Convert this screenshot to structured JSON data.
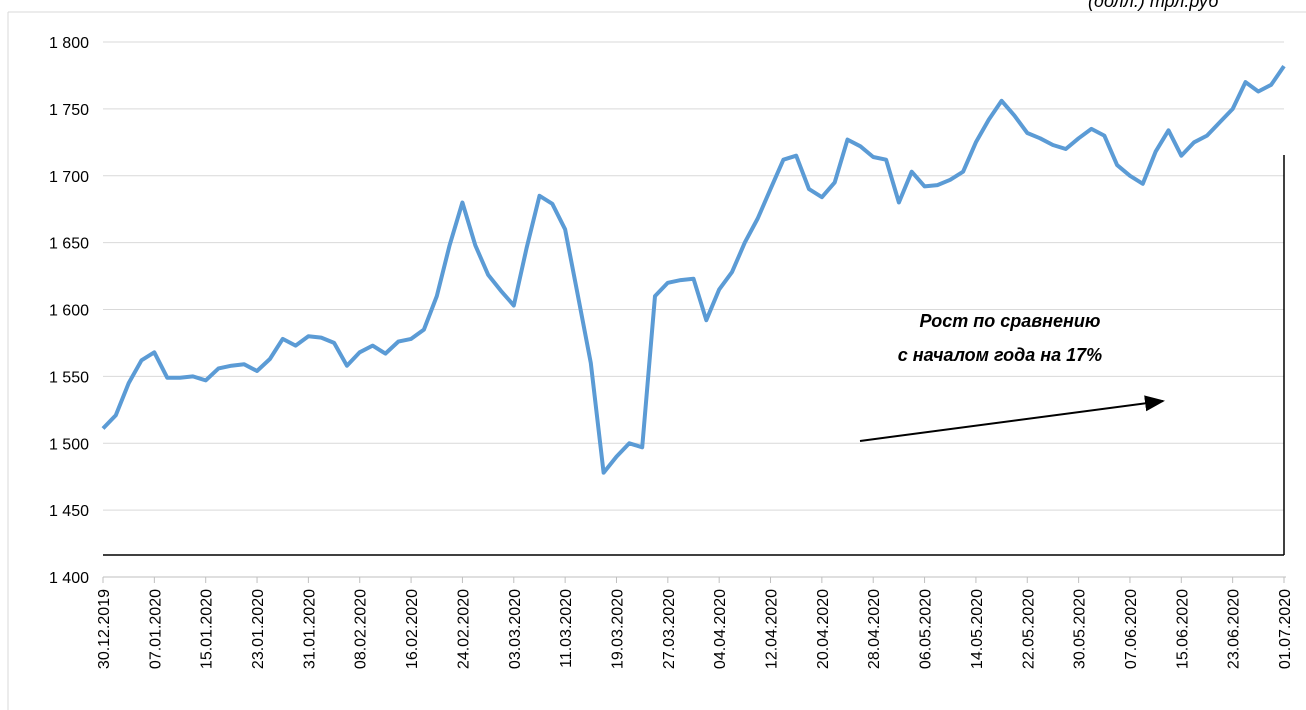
{
  "chart_data": {
    "type": "line",
    "unit_note": "(долл.) трл.руб",
    "annotation": [
      "Рост по сравнению",
      "с началом года на 17%"
    ],
    "categories": [
      "30.12.2019",
      null,
      null,
      null,
      "07.01.2020",
      null,
      null,
      null,
      "15.01.2020",
      null,
      null,
      null,
      "23.01.2020",
      null,
      null,
      null,
      "31.01.2020",
      null,
      null,
      null,
      "08.02.2020",
      null,
      null,
      null,
      "16.02.2020",
      null,
      null,
      null,
      "24.02.2020",
      null,
      null,
      null,
      "03.03.2020",
      null,
      null,
      null,
      "11.03.2020",
      null,
      null,
      null,
      "19.03.2020",
      null,
      null,
      null,
      "27.03.2020",
      null,
      null,
      null,
      "04.04.2020",
      null,
      null,
      null,
      "12.04.2020",
      null,
      null,
      null,
      "20.04.2020",
      null,
      null,
      null,
      "28.04.2020",
      null,
      null,
      null,
      "06.05.2020",
      null,
      null,
      null,
      "14.05.2020",
      null,
      null,
      null,
      "22.05.2020",
      null,
      null,
      null,
      "30.05.2020",
      null,
      null,
      null,
      "07.06.2020",
      null,
      null,
      null,
      "15.06.2020",
      null,
      null,
      null,
      "23.06.2020",
      null,
      null,
      null,
      "01.07.2020"
    ],
    "series": [
      {
        "color": "#5b9bd5",
        "values": [
          1511,
          1521,
          1545,
          1562,
          1568,
          1549,
          1549,
          1550,
          1547,
          1556,
          1558,
          1559,
          1554,
          1563,
          1578,
          1573,
          1580,
          1579,
          1575,
          1558,
          1568,
          1573,
          1567,
          1576,
          1578,
          1585,
          1610,
          1648,
          1680,
          1648,
          1626,
          1614,
          1603,
          1646,
          1685,
          1679,
          1660,
          1610,
          1560,
          1478,
          1490,
          1500,
          1497,
          1610,
          1620,
          1622,
          1623,
          1592,
          1615,
          1628,
          1650,
          1668,
          1690,
          1712,
          1715,
          1690,
          1684,
          1695,
          1727,
          1722,
          1714,
          1712,
          1680,
          1703,
          1692,
          1693,
          1697,
          1703,
          1725,
          1742,
          1756,
          1745,
          1732,
          1728,
          1723,
          1720,
          1728,
          1735,
          1730,
          1708,
          1700,
          1694,
          1718,
          1734,
          1715,
          1725,
          1730,
          1740,
          1750,
          1770,
          1763,
          1768,
          1782
        ]
      }
    ],
    "ylim": [
      1400,
      1800
    ],
    "yticks": [
      {
        "value": 1400,
        "label": "1 400"
      },
      {
        "value": 1450,
        "label": "1 450"
      },
      {
        "value": 1500,
        "label": "1 500"
      },
      {
        "value": 1550,
        "label": "1 550"
      },
      {
        "value": 1600,
        "label": "1 600"
      },
      {
        "value": 1650,
        "label": "1 650"
      },
      {
        "value": 1700,
        "label": "1 700"
      },
      {
        "value": 1750,
        "label": "1 750"
      },
      {
        "value": 1800,
        "label": "1 800"
      }
    ],
    "grid": true
  }
}
